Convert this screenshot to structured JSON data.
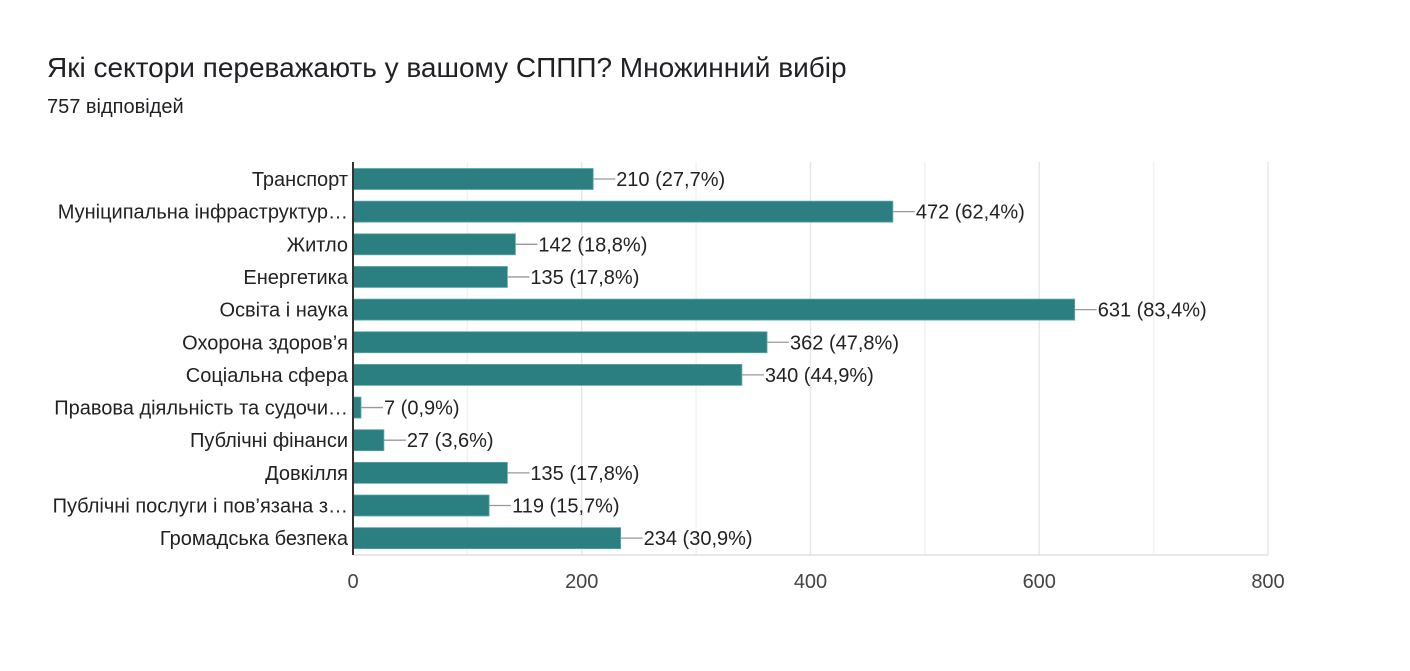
{
  "chart_data": {
    "type": "bar",
    "orientation": "horizontal",
    "title": "Які сектори переважають у вашому СППП? Множинний вибір",
    "subtitle": "757 відповідей",
    "categories": [
      "Транспорт",
      "Муніципальна інфраструктур…",
      "Житло",
      "Енергетика",
      "Освіта і наука",
      "Охорона здоров’я",
      "Соціальна сфера",
      "Правова діяльність та судочи…",
      "Публічні фінанси",
      "Довкілля",
      "Публічні послуги і пов’язана з…",
      "Громадська безпека"
    ],
    "values": [
      210,
      472,
      142,
      135,
      631,
      362,
      340,
      7,
      27,
      135,
      119,
      234
    ],
    "data_labels": [
      "210 (27,7%)",
      "472 (62,4%)",
      "142 (18,8%)",
      "135 (17,8%)",
      "631 (83,4%)",
      "362 (47,8%)",
      "340 (44,9%)",
      "7 (0,9%)",
      "27 (3,6%)",
      "135 (17,8%)",
      "119 (15,7%)",
      "234 (30,9%)"
    ],
    "xlim": [
      0,
      800
    ],
    "xticks": [
      "0",
      "200",
      "400",
      "600",
      "800"
    ],
    "grid": true,
    "bar_color": "#2b7f80",
    "xlabel": "",
    "ylabel": ""
  }
}
